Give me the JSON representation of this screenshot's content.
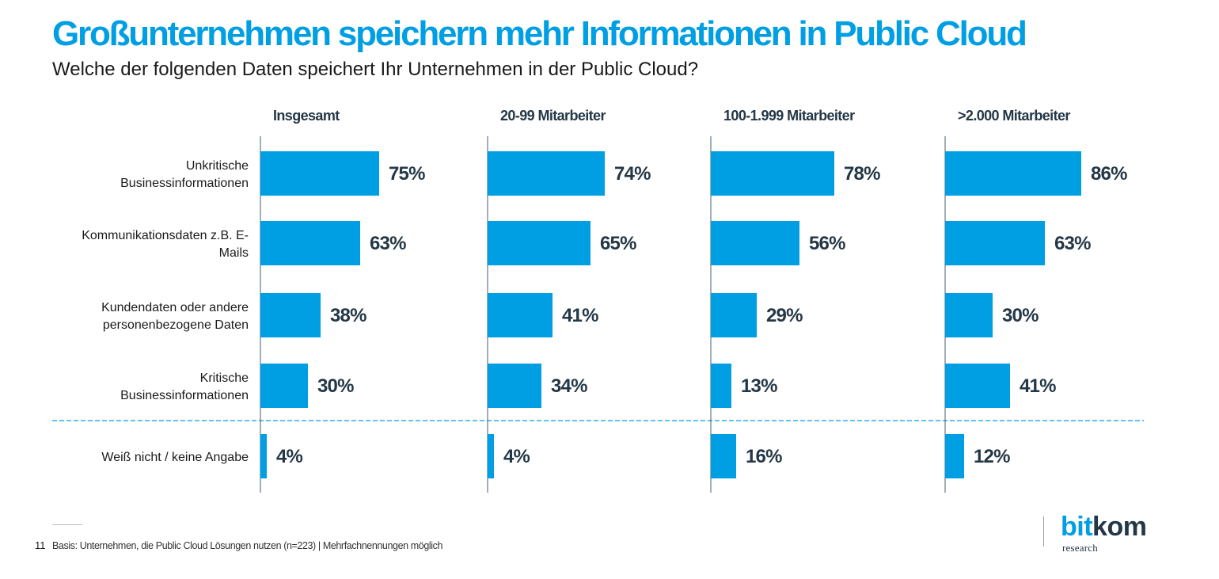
{
  "title": "Großunternehmen speichern mehr Informationen in Public Cloud",
  "subtitle": "Welche der folgenden Daten speichert Ihr Unternehmen in der Public Cloud?",
  "colors": {
    "bar": "#009fe3",
    "title": "#009fe3",
    "text_dark": "#243746",
    "divider": "#009fe3"
  },
  "chart_data": {
    "type": "bar",
    "orientation": "horizontal",
    "title": "Großunternehmen speichern mehr Informationen in Public Cloud",
    "subtitle": "Welche der folgenden Daten speichert Ihr Unternehmen in der Public Cloud?",
    "unit": "%",
    "xlim": [
      0,
      100
    ],
    "categories": [
      [
        "Unkritische",
        "Businessinformationen"
      ],
      [
        "Kommunikationsdaten z.B. E-",
        "Mails"
      ],
      [
        "Kundendaten oder andere",
        "personenbezogene Daten"
      ],
      [
        "Kritische",
        "Businessinformationen"
      ],
      [
        "Weiß nicht / keine Angabe"
      ]
    ],
    "series": [
      {
        "name": "Insgesamt",
        "values": [
          75,
          63,
          38,
          30,
          4
        ]
      },
      {
        "name": "20-99 Mitarbeiter",
        "values": [
          74,
          65,
          41,
          34,
          4
        ]
      },
      {
        "name": "100-1.999 Mitarbeiter",
        "values": [
          78,
          56,
          29,
          13,
          16
        ]
      },
      {
        "name": ">2.000 Mitarbeiter",
        "values": [
          86,
          63,
          30,
          41,
          12
        ]
      }
    ]
  },
  "footer": {
    "page_number": "11",
    "note": "Basis: Unternehmen, die Public Cloud Lösungen nutzen (n=223) | Mehrfachnennungen möglich"
  },
  "logo": {
    "main_bit": "bit",
    "main_kom": "kom",
    "sub": "research"
  }
}
